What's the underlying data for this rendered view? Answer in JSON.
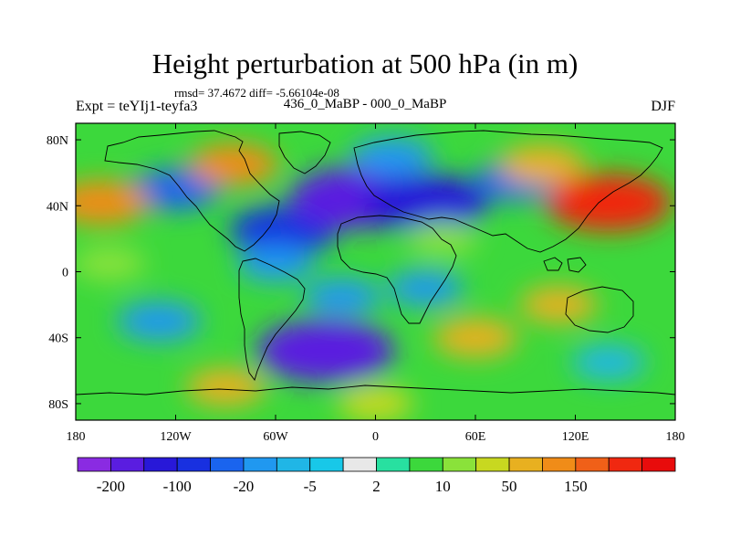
{
  "title": "Height perturbation at 500 hPa (in m)",
  "stats": "rmsd= 37.4672 diff= -5.66104e-08",
  "left_label": "Expt = teYIj1-teyfa3",
  "center_label": "436_0_MaBP - 000_0_MaBP",
  "right_label": "DJF",
  "map": {
    "lon_range": [
      -180,
      180
    ],
    "lat_range": [
      -90,
      90
    ],
    "lon_ticks": [
      {
        "value": -180,
        "label": "180"
      },
      {
        "value": -120,
        "label": "120W"
      },
      {
        "value": -60,
        "label": "60W"
      },
      {
        "value": 0,
        "label": "0"
      },
      {
        "value": 60,
        "label": "60E"
      },
      {
        "value": 120,
        "label": "120E"
      },
      {
        "value": 180,
        "label": "180"
      }
    ],
    "lat_ticks": [
      {
        "value": 80,
        "label": "80N"
      },
      {
        "value": 40,
        "label": "40N"
      },
      {
        "value": 0,
        "label": "0"
      },
      {
        "value": -40,
        "label": "40S"
      },
      {
        "value": -80,
        "label": "80S"
      }
    ],
    "features": [
      {
        "lon": -55,
        "lat": 25,
        "value": -120
      },
      {
        "lon": -10,
        "lat": 45,
        "value": -210
      },
      {
        "lon": 30,
        "lat": 42,
        "value": -170
      },
      {
        "lon": -120,
        "lat": 50,
        "value": -60
      },
      {
        "lon": 85,
        "lat": 55,
        "value": -50
      },
      {
        "lon": 10,
        "lat": 70,
        "value": -40
      },
      {
        "lon": -165,
        "lat": 42,
        "value": 80
      },
      {
        "lon": -85,
        "lat": 65,
        "value": 60
      },
      {
        "lon": 140,
        "lat": 42,
        "value": 170
      },
      {
        "lon": 100,
        "lat": 65,
        "value": 50
      },
      {
        "lon": -160,
        "lat": 5,
        "value": 10
      },
      {
        "lon": 40,
        "lat": 20,
        "value": 8
      },
      {
        "lon": -60,
        "lat": 5,
        "value": -20
      },
      {
        "lon": 30,
        "lat": -10,
        "value": -20
      },
      {
        "lon": -20,
        "lat": -15,
        "value": -25
      },
      {
        "lon": -30,
        "lat": -48,
        "value": -210
      },
      {
        "lon": -130,
        "lat": -30,
        "value": -45
      },
      {
        "lon": 140,
        "lat": -55,
        "value": -15
      },
      {
        "lon": 110,
        "lat": -20,
        "value": 25
      },
      {
        "lon": 60,
        "lat": -40,
        "value": 45
      },
      {
        "lon": -90,
        "lat": -70,
        "value": 30
      },
      {
        "lon": 0,
        "lat": -80,
        "value": 20
      }
    ]
  },
  "colorbar": {
    "colors": [
      "#8a2be2",
      "#5a1de0",
      "#2818d8",
      "#1830e0",
      "#1a64ee",
      "#2098f0",
      "#20b6e6",
      "#18c8e8",
      "#e8e8e8",
      "#28e0a0",
      "#3cd83c",
      "#8ae23a",
      "#c8d820",
      "#e8b020",
      "#f08c18",
      "#f06018",
      "#f02810",
      "#e80c0c"
    ],
    "labels": [
      {
        "index": 1,
        "text": "-200"
      },
      {
        "index": 3,
        "text": "-100"
      },
      {
        "index": 5,
        "text": "-20"
      },
      {
        "index": 7,
        "text": "-5"
      },
      {
        "index": 9,
        "text": "2"
      },
      {
        "index": 11,
        "text": "10"
      },
      {
        "index": 13,
        "text": "50"
      },
      {
        "index": 15,
        "text": "150"
      }
    ],
    "levels": [
      -250,
      -200,
      -150,
      -100,
      -50,
      -20,
      -10,
      -5,
      -2,
      2,
      5,
      10,
      20,
      50,
      100,
      150,
      200
    ]
  }
}
